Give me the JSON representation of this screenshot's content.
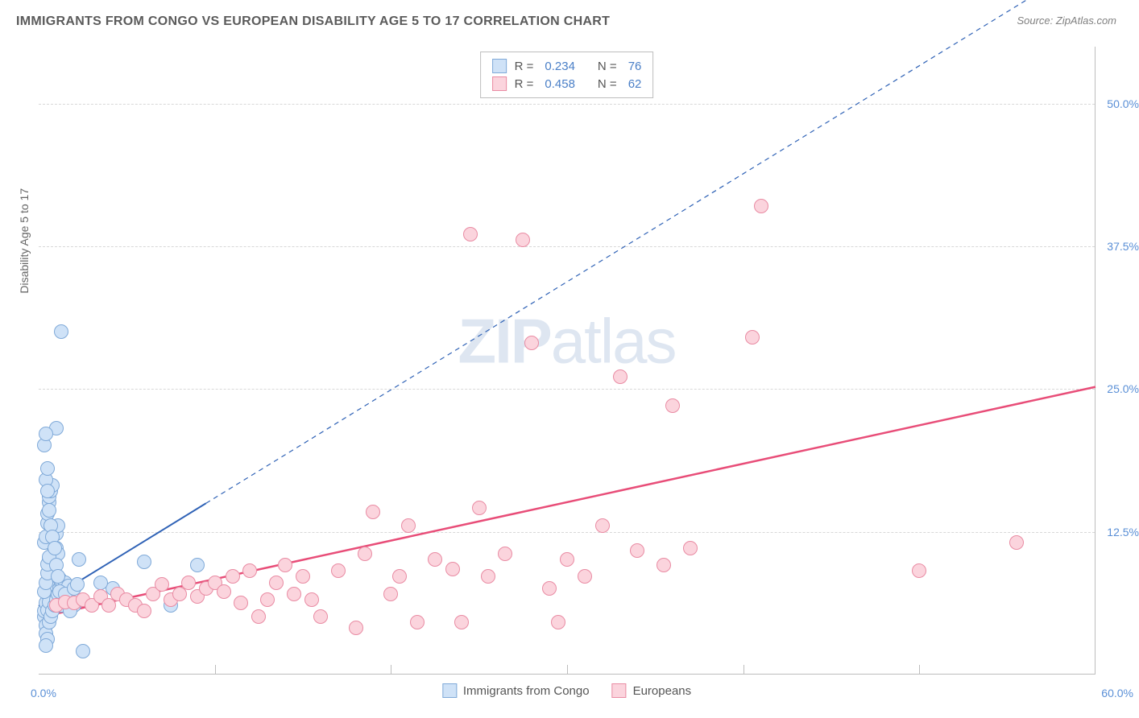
{
  "title": "IMMIGRANTS FROM CONGO VS EUROPEAN DISABILITY AGE 5 TO 17 CORRELATION CHART",
  "source": "Source: ZipAtlas.com",
  "ylabel": "Disability Age 5 to 17",
  "watermark": {
    "zip": "ZIP",
    "atlas": "atlas"
  },
  "chart": {
    "type": "scatter",
    "xlim": [
      0,
      60
    ],
    "ylim": [
      0,
      55
    ],
    "x_ticks_labeled": [
      {
        "pos": 0,
        "label": "0.0%"
      },
      {
        "pos": 60,
        "label": "60.0%"
      }
    ],
    "x_ticks_minor": [
      10,
      20,
      30,
      40,
      50
    ],
    "y_ticks": [
      {
        "pos": 12.5,
        "label": "12.5%"
      },
      {
        "pos": 25.0,
        "label": "25.0%"
      },
      {
        "pos": 37.5,
        "label": "37.5%"
      },
      {
        "pos": 50.0,
        "label": "50.0%"
      }
    ],
    "grid_color": "#d8d8d8",
    "axis_color": "#bdbdbd",
    "background": "#ffffff",
    "marker_radius": 9,
    "marker_stroke_width": 1.5,
    "series": [
      {
        "name": "Immigrants from Congo",
        "fill": "#cfe2f7",
        "stroke": "#7fa9d8",
        "r_value": "0.234",
        "n_value": "76",
        "regression": {
          "x1": 0,
          "y1": 6,
          "x2": 9.5,
          "y2": 15,
          "extend_to_x": 60,
          "extend_to_y": 62.8,
          "solid_color": "#2f62b6",
          "width": 2
        },
        "points": [
          [
            0.3,
            5.0
          ],
          [
            0.3,
            5.5
          ],
          [
            0.4,
            6.2
          ],
          [
            0.5,
            7.0
          ],
          [
            0.5,
            8.1
          ],
          [
            0.6,
            9.0
          ],
          [
            0.6,
            10.0
          ],
          [
            0.7,
            11.4
          ],
          [
            0.4,
            4.2
          ],
          [
            0.4,
            3.5
          ],
          [
            0.5,
            3.0
          ],
          [
            0.5,
            5.6
          ],
          [
            0.6,
            6.3
          ],
          [
            0.6,
            7.4
          ],
          [
            0.7,
            8.3
          ],
          [
            0.7,
            9.2
          ],
          [
            0.8,
            7.8
          ],
          [
            0.8,
            8.7
          ],
          [
            0.9,
            9.5
          ],
          [
            0.9,
            10.3
          ],
          [
            1.0,
            11.0
          ],
          [
            1.0,
            12.3
          ],
          [
            1.1,
            13.0
          ],
          [
            1.1,
            10.5
          ],
          [
            0.3,
            11.5
          ],
          [
            0.4,
            12.0
          ],
          [
            0.5,
            13.2
          ],
          [
            0.5,
            14.0
          ],
          [
            0.6,
            15.0
          ],
          [
            0.6,
            15.5
          ],
          [
            0.7,
            16.0
          ],
          [
            0.8,
            16.5
          ],
          [
            0.3,
            7.2
          ],
          [
            0.4,
            8.0
          ],
          [
            0.5,
            8.8
          ],
          [
            0.5,
            9.6
          ],
          [
            0.6,
            10.2
          ],
          [
            0.6,
            4.5
          ],
          [
            0.7,
            5.0
          ],
          [
            0.8,
            5.5
          ],
          [
            0.9,
            6.0
          ],
          [
            1.0,
            6.5
          ],
          [
            1.1,
            7.0
          ],
          [
            1.2,
            7.5
          ],
          [
            1.3,
            8.0
          ],
          [
            1.2,
            8.3
          ],
          [
            1.5,
            8.0
          ],
          [
            1.7,
            7.7
          ],
          [
            0.3,
            20.0
          ],
          [
            1.0,
            21.5
          ],
          [
            0.4,
            2.5
          ],
          [
            2.5,
            2.0
          ],
          [
            0.4,
            17.0
          ],
          [
            0.5,
            16.0
          ],
          [
            0.6,
            14.3
          ],
          [
            0.7,
            13.0
          ],
          [
            0.8,
            12.0
          ],
          [
            0.9,
            11.0
          ],
          [
            1.0,
            9.5
          ],
          [
            1.1,
            8.5
          ],
          [
            1.2,
            7.2
          ],
          [
            1.3,
            6.0
          ],
          [
            1.5,
            7.0
          ],
          [
            2.0,
            7.5
          ],
          [
            2.2,
            7.8
          ],
          [
            2.0,
            6.0
          ],
          [
            1.8,
            5.5
          ],
          [
            2.3,
            10.0
          ],
          [
            4.2,
            7.5
          ],
          [
            3.5,
            8.0
          ],
          [
            6.0,
            9.8
          ],
          [
            7.5,
            6.0
          ],
          [
            9.0,
            9.5
          ],
          [
            1.3,
            30.0
          ],
          [
            0.4,
            21.0
          ],
          [
            0.5,
            18.0
          ]
        ]
      },
      {
        "name": "Europeans",
        "fill": "#fbd4dd",
        "stroke": "#e98ba3",
        "r_value": "0.458",
        "n_value": "62",
        "regression": {
          "x1": 0,
          "y1": 5.0,
          "x2": 60,
          "y2": 25.2,
          "solid_color": "#e84d78",
          "width": 2.5
        },
        "points": [
          [
            1.0,
            6.0
          ],
          [
            1.5,
            6.3
          ],
          [
            2.0,
            6.2
          ],
          [
            2.5,
            6.5
          ],
          [
            3.0,
            6.0
          ],
          [
            3.5,
            6.8
          ],
          [
            4.0,
            6.0
          ],
          [
            4.5,
            7.0
          ],
          [
            5.0,
            6.5
          ],
          [
            5.5,
            6.0
          ],
          [
            6.0,
            5.5
          ],
          [
            6.5,
            7.0
          ],
          [
            7.0,
            7.8
          ],
          [
            7.5,
            6.5
          ],
          [
            8.0,
            7.0
          ],
          [
            8.5,
            8.0
          ],
          [
            9.0,
            6.8
          ],
          [
            9.5,
            7.5
          ],
          [
            10.0,
            8.0
          ],
          [
            10.5,
            7.2
          ],
          [
            11.0,
            8.5
          ],
          [
            11.5,
            6.2
          ],
          [
            12.0,
            9.0
          ],
          [
            12.5,
            5.0
          ],
          [
            13.0,
            6.5
          ],
          [
            13.5,
            8.0
          ],
          [
            14.0,
            9.5
          ],
          [
            14.5,
            7.0
          ],
          [
            15.0,
            8.5
          ],
          [
            15.5,
            6.5
          ],
          [
            16.0,
            5.0
          ],
          [
            17.0,
            9.0
          ],
          [
            18.0,
            4.0
          ],
          [
            18.5,
            10.5
          ],
          [
            19.0,
            14.2
          ],
          [
            20.0,
            7.0
          ],
          [
            20.5,
            8.5
          ],
          [
            21.0,
            13.0
          ],
          [
            21.5,
            4.5
          ],
          [
            22.5,
            10.0
          ],
          [
            23.5,
            9.2
          ],
          [
            24.0,
            4.5
          ],
          [
            24.5,
            38.5
          ],
          [
            25.0,
            14.5
          ],
          [
            25.5,
            8.5
          ],
          [
            26.5,
            10.5
          ],
          [
            27.5,
            38.0
          ],
          [
            28.0,
            29.0
          ],
          [
            29.0,
            7.5
          ],
          [
            29.5,
            4.5
          ],
          [
            30.0,
            10.0
          ],
          [
            31.0,
            8.5
          ],
          [
            32.0,
            13.0
          ],
          [
            33.0,
            26.0
          ],
          [
            34.0,
            10.8
          ],
          [
            35.5,
            9.5
          ],
          [
            36.0,
            23.5
          ],
          [
            37.0,
            11.0
          ],
          [
            40.5,
            29.5
          ],
          [
            41.0,
            41.0
          ],
          [
            55.5,
            11.5
          ],
          [
            50.0,
            9.0
          ]
        ]
      }
    ]
  },
  "legend_top_labels": {
    "r": "R =",
    "n": "N ="
  }
}
